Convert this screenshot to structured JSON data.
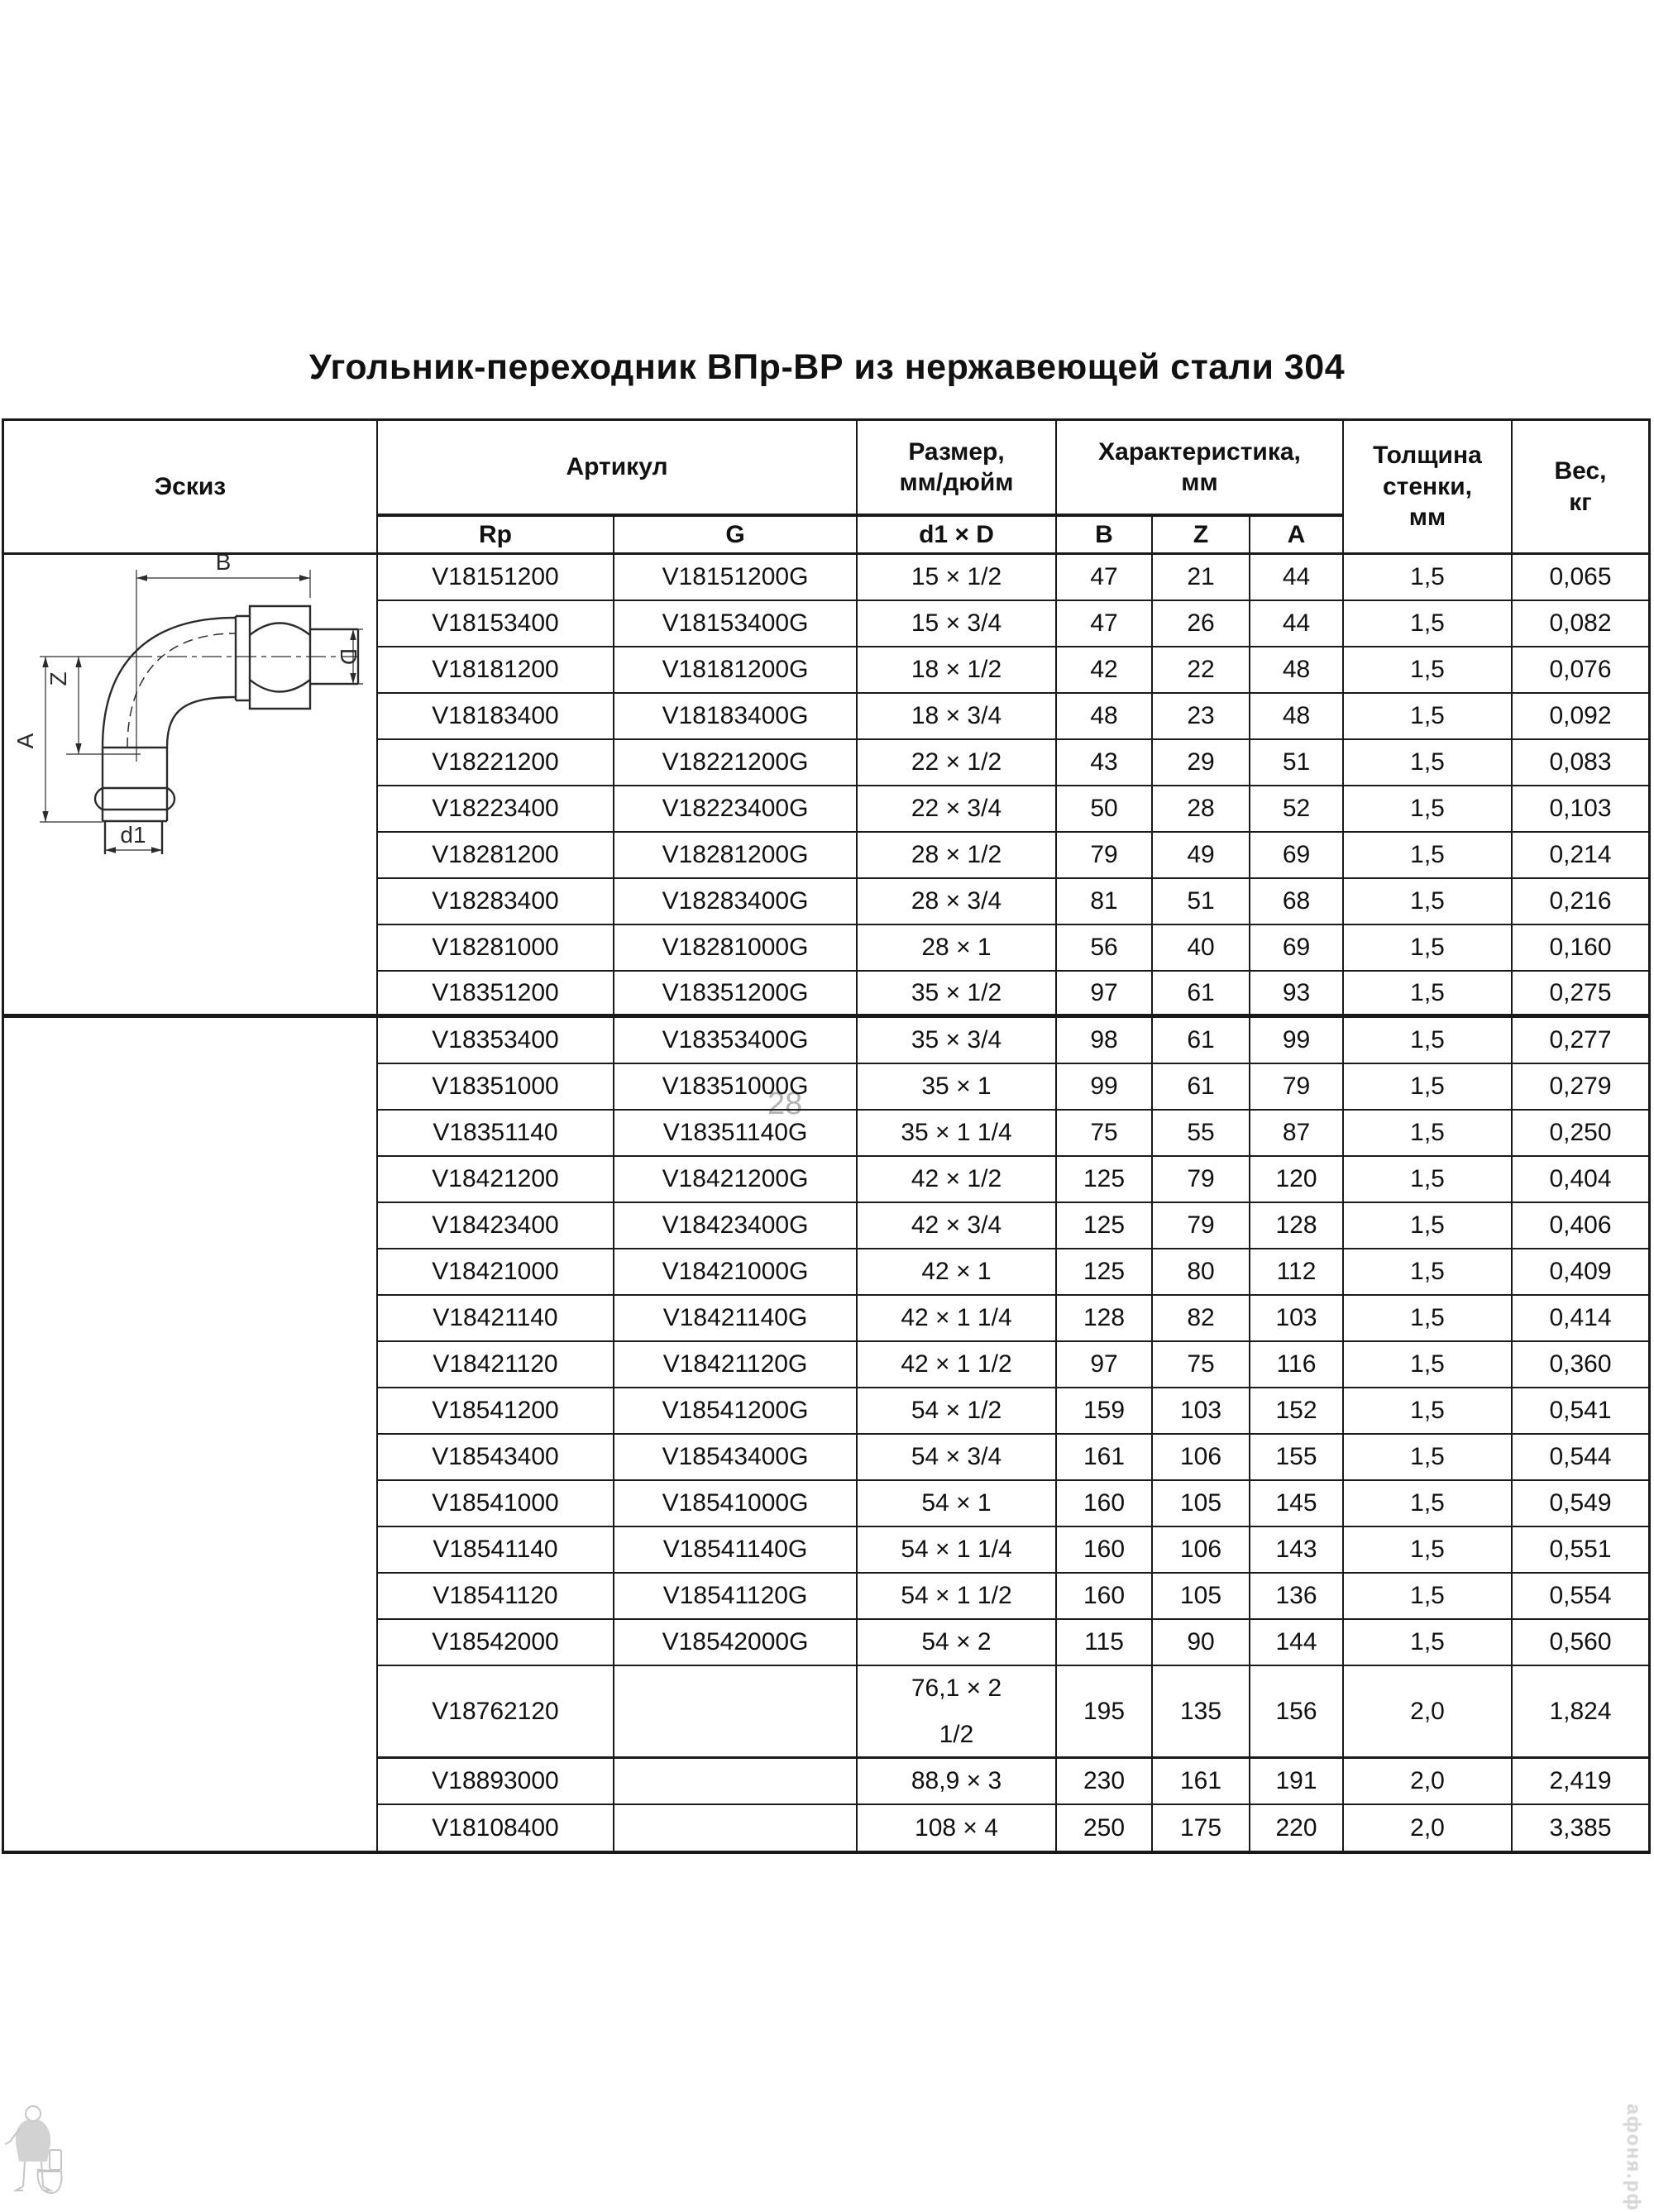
{
  "page": {
    "title": "Угольник-переходник ВПр-ВР из нержавеющей стали 304"
  },
  "table": {
    "headers": {
      "sketch": "Эскиз",
      "article": "Артикул",
      "size": "Размер,\nмм/дюйм",
      "characteristic": "Характеристика,\nмм",
      "wall": "Толщина\nстенки,\nмм",
      "weight": "Вес,\nкг",
      "rp": "Rp",
      "g": "G",
      "d1d": "d1 × D",
      "b": "B",
      "z": "Z",
      "a": "A"
    },
    "rows": [
      {
        "rp": "V18151200",
        "g": "V18151200G",
        "size": "15 × 1/2",
        "b": "47",
        "z": "21",
        "a": "44",
        "wall": "1,5",
        "weight": "0,065"
      },
      {
        "rp": "V18153400",
        "g": "V18153400G",
        "size": "15 × 3/4",
        "b": "47",
        "z": "26",
        "a": "44",
        "wall": "1,5",
        "weight": "0,082"
      },
      {
        "rp": "V18181200",
        "g": "V18181200G",
        "size": "18 × 1/2",
        "b": "42",
        "z": "22",
        "a": "48",
        "wall": "1,5",
        "weight": "0,076"
      },
      {
        "rp": "V18183400",
        "g": "V18183400G",
        "size": "18 × 3/4",
        "b": "48",
        "z": "23",
        "a": "48",
        "wall": "1,5",
        "weight": "0,092"
      },
      {
        "rp": "V18221200",
        "g": "V18221200G",
        "size": "22 × 1/2",
        "b": "43",
        "z": "29",
        "a": "51",
        "wall": "1,5",
        "weight": "0,083"
      },
      {
        "rp": "V18223400",
        "g": "V18223400G",
        "size": "22 × 3/4",
        "b": "50",
        "z": "28",
        "a": "52",
        "wall": "1,5",
        "weight": "0,103"
      },
      {
        "rp": "V18281200",
        "g": "V18281200G",
        "size": "28 × 1/2",
        "b": "79",
        "z": "49",
        "a": "69",
        "wall": "1,5",
        "weight": "0,214"
      },
      {
        "rp": "V18283400",
        "g": "V18283400G",
        "size": "28 × 3/4",
        "b": "81",
        "z": "51",
        "a": "68",
        "wall": "1,5",
        "weight": "0,216"
      },
      {
        "rp": "V18281000",
        "g": "V18281000G",
        "size": "28 × 1",
        "b": "56",
        "z": "40",
        "a": "69",
        "wall": "1,5",
        "weight": "0,160"
      },
      {
        "rp": "V18351200",
        "g": "V18351200G",
        "size": "35 × 1/2",
        "b": "97",
        "z": "61",
        "a": "93",
        "wall": "1,5",
        "weight": "0,275"
      },
      {
        "rp": "V18353400",
        "g": "V18353400G",
        "size": "35 × 3/4",
        "b": "98",
        "z": "61",
        "a": "99",
        "wall": "1,5",
        "weight": "0,277"
      },
      {
        "rp": "V18351000",
        "g": "V18351000G",
        "size": "35 × 1",
        "b": "99",
        "z": "61",
        "a": "79",
        "wall": "1,5",
        "weight": "0,279"
      },
      {
        "rp": "V18351140",
        "g": "V18351140G",
        "size": "35 × 1 1/4",
        "b": "75",
        "z": "55",
        "a": "87",
        "wall": "1,5",
        "weight": "0,250"
      },
      {
        "rp": "V18421200",
        "g": "V18421200G",
        "size": "42 × 1/2",
        "b": "125",
        "z": "79",
        "a": "120",
        "wall": "1,5",
        "weight": "0,404"
      },
      {
        "rp": "V18423400",
        "g": "V18423400G",
        "size": "42 × 3/4",
        "b": "125",
        "z": "79",
        "a": "128",
        "wall": "1,5",
        "weight": "0,406"
      },
      {
        "rp": "V18421000",
        "g": "V18421000G",
        "size": "42 × 1",
        "b": "125",
        "z": "80",
        "a": "112",
        "wall": "1,5",
        "weight": "0,409"
      },
      {
        "rp": "V18421140",
        "g": "V18421140G",
        "size": "42 × 1 1/4",
        "b": "128",
        "z": "82",
        "a": "103",
        "wall": "1,5",
        "weight": "0,414"
      },
      {
        "rp": "V18421120",
        "g": "V18421120G",
        "size": "42 × 1 1/2",
        "b": "97",
        "z": "75",
        "a": "116",
        "wall": "1,5",
        "weight": "0,360"
      },
      {
        "rp": "V18541200",
        "g": "V18541200G",
        "size": "54 × 1/2",
        "b": "159",
        "z": "103",
        "a": "152",
        "wall": "1,5",
        "weight": "0,541"
      },
      {
        "rp": "V18543400",
        "g": "V18543400G",
        "size": "54 × 3/4",
        "b": "161",
        "z": "106",
        "a": "155",
        "wall": "1,5",
        "weight": "0,544"
      },
      {
        "rp": "V18541000",
        "g": "V18541000G",
        "size": "54 × 1",
        "b": "160",
        "z": "105",
        "a": "145",
        "wall": "1,5",
        "weight": "0,549"
      },
      {
        "rp": "V18541140",
        "g": "V18541140G",
        "size": "54 × 1 1/4",
        "b": "160",
        "z": "106",
        "a": "143",
        "wall": "1,5",
        "weight": "0,551"
      },
      {
        "rp": "V18541120",
        "g": "V18541120G",
        "size": "54 × 1 1/2",
        "b": "160",
        "z": "105",
        "a": "136",
        "wall": "1,5",
        "weight": "0,554"
      },
      {
        "rp": "V18542000",
        "g": "V18542000G",
        "size": "54 × 2",
        "b": "115",
        "z": "90",
        "a": "144",
        "wall": "1,5",
        "weight": "0,560"
      },
      {
        "rp": "V18762120",
        "g": "",
        "size": "76,1 × 2\n1/2",
        "b": "195",
        "z": "135",
        "a": "156",
        "wall": "2,0",
        "weight": "1,824"
      },
      {
        "rp": "V18893000",
        "g": "",
        "size": "88,9 × 3",
        "b": "230",
        "z": "161",
        "a": "191",
        "wall": "2,0",
        "weight": "2,419"
      },
      {
        "rp": "V18108400",
        "g": "",
        "size": "108 × 4",
        "b": "250",
        "z": "175",
        "a": "220",
        "wall": "2,0",
        "weight": "3,385"
      }
    ]
  },
  "sketch": {
    "labels": {
      "b": "B",
      "d": "D",
      "z": "Z",
      "a": "A",
      "d1": "d1"
    }
  },
  "watermarks": {
    "page_number": "28",
    "site": "афоня.рф"
  },
  "colors": {
    "border": "#1a1a1a",
    "text": "#111111",
    "watermark_gray": "#b3b3b3",
    "logo_gray": "#c6c6c6"
  }
}
